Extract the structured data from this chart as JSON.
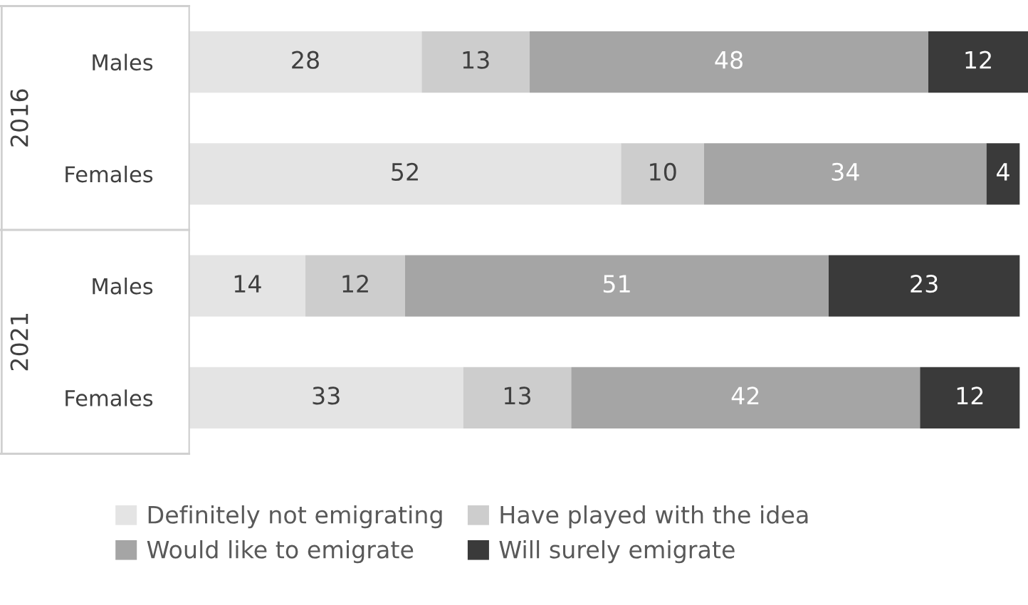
{
  "chart_data": {
    "type": "bar",
    "orientation": "horizontal",
    "stacked": true,
    "data_labels": true,
    "tick_labels": "y",
    "grid": false,
    "legend": "bottom",
    "categories": [
      "Males",
      "Females",
      "Males",
      "Females"
    ],
    "annotations": [
      "2016",
      "2021"
    ],
    "series": [
      {
        "name": "Definitely not emigrating",
        "color": "#e4e4e4",
        "values": [
          28,
          52,
          14,
          33
        ]
      },
      {
        "name": "Have played with the idea",
        "color": "#cdcdcd",
        "values": [
          13,
          10,
          12,
          13
        ]
      },
      {
        "name": "Would like to emigrate",
        "color": "#a5a5a5",
        "values": [
          48,
          34,
          51,
          42
        ]
      },
      {
        "name": "Will surely emigrate",
        "color": "#3a3a3a",
        "values": [
          12,
          4,
          23,
          12
        ]
      }
    ]
  }
}
